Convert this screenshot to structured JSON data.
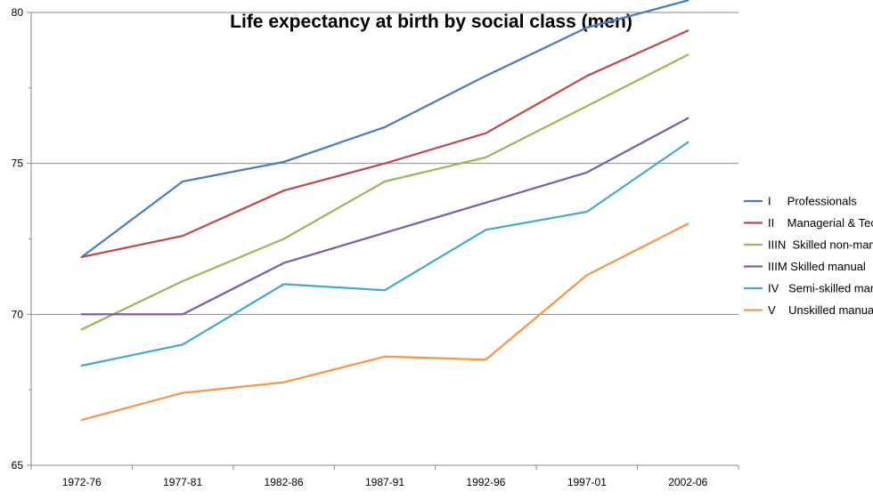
{
  "chart_data": {
    "type": "line",
    "title": "Life expectancy at birth by social class (men)",
    "xlabel": "",
    "ylabel": "",
    "categories": [
      "1972-76",
      "1977-81",
      "1982-86",
      "1987-91",
      "1992-96",
      "1997-01",
      "2002-06"
    ],
    "ylim": [
      65,
      80
    ],
    "yticks": [
      65,
      70,
      75,
      80
    ],
    "ytick_labels": [
      "65",
      "70",
      "75",
      "80"
    ],
    "grid": "horizontal major gridlines",
    "legend_position": "right",
    "series": [
      {
        "name": "I     Professionals",
        "color": "#4A7EBB",
        "values": [
          71.9,
          74.4,
          75.05,
          76.2,
          77.9,
          79.5,
          80.4
        ]
      },
      {
        "name": "II    Managerial & Tech",
        "color": "#BE4B48",
        "values": [
          71.9,
          72.6,
          74.1,
          75.0,
          76.0,
          77.9,
          79.4
        ]
      },
      {
        "name": "IIIN  Skilled non-manual",
        "color": "#98B954",
        "values": [
          69.5,
          71.1,
          72.5,
          74.4,
          75.2,
          76.9,
          78.6
        ]
      },
      {
        "name": "IIIM Skilled manual",
        "color": "#7D60A0",
        "values": [
          70.0,
          70.0,
          71.7,
          72.7,
          73.7,
          74.7,
          76.5
        ]
      },
      {
        "name": "IV   Semi-skilled manual",
        "color": "#46AAC5",
        "values": [
          68.3,
          69.0,
          71.0,
          70.8,
          72.8,
          73.4,
          75.7
        ]
      },
      {
        "name": "V    Unskilled manual",
        "color": "#F79646",
        "values": [
          66.5,
          67.4,
          67.75,
          68.6,
          68.5,
          71.3,
          73.0
        ]
      }
    ]
  },
  "colors": {
    "gridline": "#898989",
    "axis": "#898989",
    "background": "#ffffff"
  }
}
